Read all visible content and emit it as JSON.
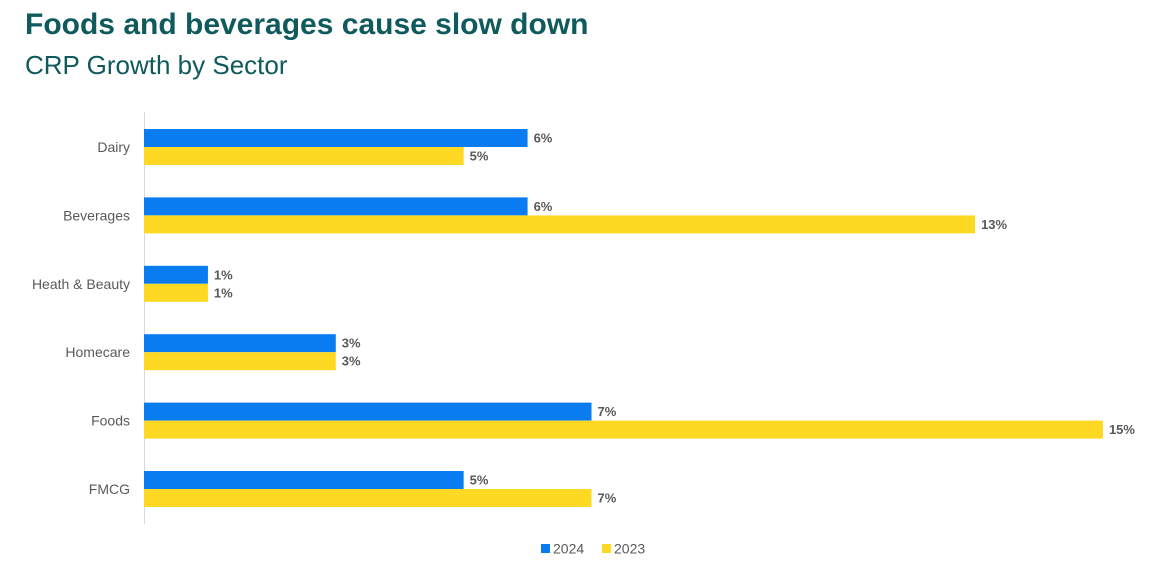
{
  "title": "Foods and beverages cause slow down",
  "subtitle": "CRP Growth by Sector",
  "chart_data": {
    "type": "bar",
    "orientation": "horizontal",
    "categories": [
      "Dairy",
      "Beverages",
      "Heath & Beauty",
      "Homecare",
      "Foods",
      "FMCG"
    ],
    "series": [
      {
        "name": "2024",
        "values": [
          6,
          6,
          1,
          3,
          7,
          5
        ],
        "labels": [
          "6%",
          "6%",
          "1%",
          "3%",
          "7%",
          "5%"
        ],
        "color": "#0a7cf2"
      },
      {
        "name": "2023",
        "values": [
          5,
          13,
          1,
          3,
          15,
          7
        ],
        "labels": [
          "5%",
          "13%",
          "1%",
          "3%",
          "15%",
          "7%"
        ],
        "color": "#fdd923"
      }
    ],
    "xlim": [
      0,
      15
    ],
    "value_suffix": "%",
    "legend_position": "bottom-center",
    "grid": false
  }
}
